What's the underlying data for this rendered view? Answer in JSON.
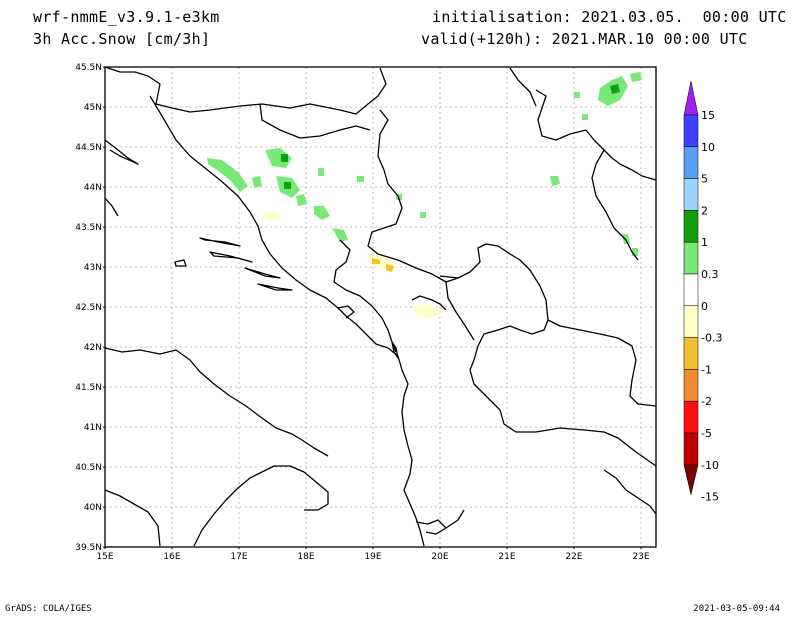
{
  "header": {
    "model": "wrf-nmmE_v3.9.1-e3km",
    "field": "3h Acc.Snow [cm/3h]",
    "initialisation": "initialisation: 2021.03.05.  00:00 UTC",
    "valid": "valid(+120h): 2021.MAR.10 00:00 UTC"
  },
  "map": {
    "lat_labels": [
      "45.5N",
      "45N",
      "44.5N",
      "44N",
      "43.5N",
      "43N",
      "42.5N",
      "42N",
      "41.5N",
      "41N",
      "40.5N",
      "40N",
      "39.5N"
    ],
    "lon_labels": [
      "15E",
      "16E",
      "17E",
      "18E",
      "19E",
      "20E",
      "21E",
      "22E",
      "23E"
    ],
    "grid": true
  },
  "colorbar": {
    "labels": [
      "15",
      "10",
      "5",
      "2",
      "1",
      "0.3",
      "0",
      "-0.3",
      "-1",
      "-2",
      "-5",
      "-10",
      "-15"
    ],
    "colors": [
      "#a020f0",
      "#4040ff",
      "#5aa0f0",
      "#a0d2ff",
      "#10a010",
      "#78e878",
      "#ffffff",
      "#ffffc8",
      "#f0c030",
      "#f08c30",
      "#ff1010",
      "#c00000",
      "#7c0000"
    ]
  },
  "footer": {
    "left": "GrADS: COLA/IGES",
    "right": "2021-03-05-09:44"
  }
}
